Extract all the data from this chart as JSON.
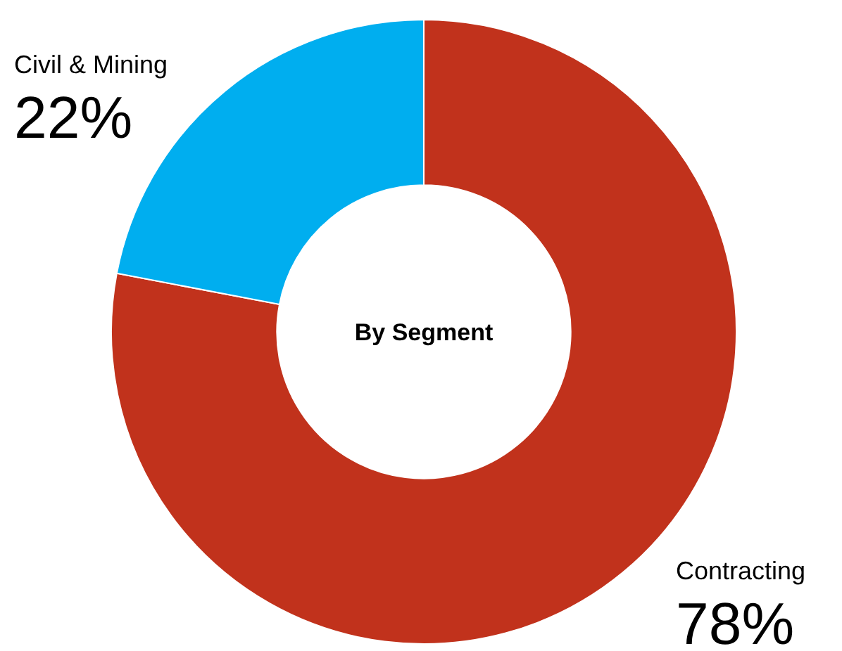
{
  "chart_data": {
    "type": "donut",
    "title": "By Segment",
    "categories": [
      "Contracting",
      "Civil & Mining"
    ],
    "values": [
      78,
      22
    ],
    "colors": [
      "#c1321c",
      "#00aeef"
    ],
    "value_labels": [
      "78%",
      "22%"
    ]
  }
}
